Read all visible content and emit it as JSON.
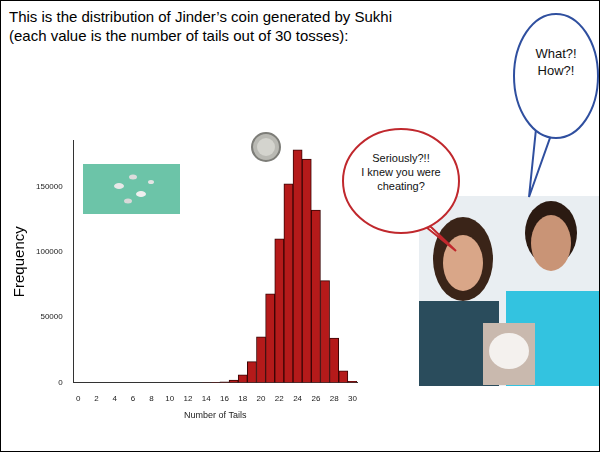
{
  "heading": [
    "This is the distribution of Jinder’s coin generated by Sukhi",
    "(each value is the number of tails out of 30 tosses):"
  ],
  "speech_bubbles": [
    {
      "lines": [
        "Seriously?!!",
        "I knew you were",
        "cheating?"
      ],
      "color": "#c0282d"
    },
    {
      "lines": [
        "What?!",
        "How?!"
      ],
      "color": "#2f4f9f"
    }
  ],
  "chart_data": {
    "type": "histogram",
    "xlabel": "Number of Tails",
    "ylabel": "Frequency",
    "bins": [
      -0.5,
      0.5,
      1.5,
      2.5,
      3.5,
      4.5,
      5.5,
      6.5,
      7.5,
      8.5,
      9.5,
      10.5,
      11.5,
      12.5,
      13.5,
      14.5,
      15.5,
      16.5,
      17.5,
      18.5,
      19.5,
      20.5,
      21.5,
      22.5,
      23.5,
      24.5,
      25.5,
      26.5,
      27.5,
      28.5,
      29.5,
      30.5
    ],
    "values": [
      0,
      0,
      0,
      0,
      0,
      0,
      0,
      0,
      0,
      0,
      0,
      0,
      0,
      0,
      100,
      200,
      600,
      2000,
      6000,
      16000,
      35000,
      68000,
      110000,
      152000,
      178000,
      171000,
      132000,
      78000,
      34000,
      9000,
      1000
    ],
    "color": "#b51a1a",
    "xlim": [
      -0.5,
      30.5
    ],
    "xticks": [
      0,
      2,
      4,
      6,
      8,
      10,
      12,
      14,
      16,
      18,
      20,
      22,
      24,
      26,
      28,
      30
    ],
    "ylim": [
      0,
      185000
    ],
    "yticks": [
      0,
      50000,
      100000,
      150000
    ],
    "grid": false
  }
}
